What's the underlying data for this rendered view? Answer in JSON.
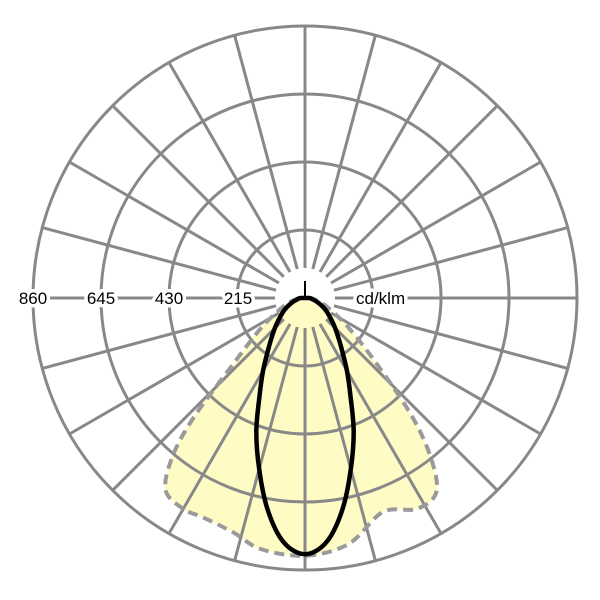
{
  "chart_data": {
    "type": "polar",
    "unit": "cd/klm",
    "radial_ticks": [
      "215",
      "430",
      "645",
      "860"
    ],
    "radial_tick_values": [
      215,
      430,
      645,
      860
    ],
    "rmax": 860,
    "angle_step_deg": 15,
    "angle_reference": "0 deg = straight down; negative = left, positive = right",
    "series": [
      {
        "style": "solid-black",
        "angles": [
          -90,
          -80,
          -70,
          -60,
          -50,
          -45,
          -40,
          -35,
          -30,
          -25,
          -20,
          -15,
          -10,
          -5,
          0,
          5,
          10,
          15,
          20,
          25,
          30,
          35,
          40,
          45,
          50,
          60,
          70,
          80,
          90
        ],
        "values": [
          15,
          25,
          45,
          75,
          110,
          135,
          165,
          205,
          265,
          340,
          450,
          560,
          680,
          775,
          810,
          775,
          680,
          560,
          450,
          340,
          265,
          205,
          165,
          135,
          110,
          75,
          45,
          25,
          15
        ]
      },
      {
        "style": "dashed-gray-filled",
        "angles": [
          -90,
          -75,
          -65,
          -55,
          -47,
          -43,
          -40,
          -36,
          -30,
          -25,
          -17,
          -10,
          0,
          10,
          20,
          28,
          34,
          38,
          42,
          47,
          55,
          65,
          75,
          90
        ],
        "values": [
          20,
          50,
          90,
          175,
          320,
          515,
          650,
          750,
          770,
          765,
          775,
          806,
          815,
          790,
          720,
          755,
          742,
          650,
          510,
          320,
          175,
          90,
          50,
          20
        ]
      }
    ],
    "colors": {
      "grid": "#888888",
      "fill": "#fffbc4",
      "dashed": "#9a9a9a",
      "solid": "#000000"
    }
  }
}
